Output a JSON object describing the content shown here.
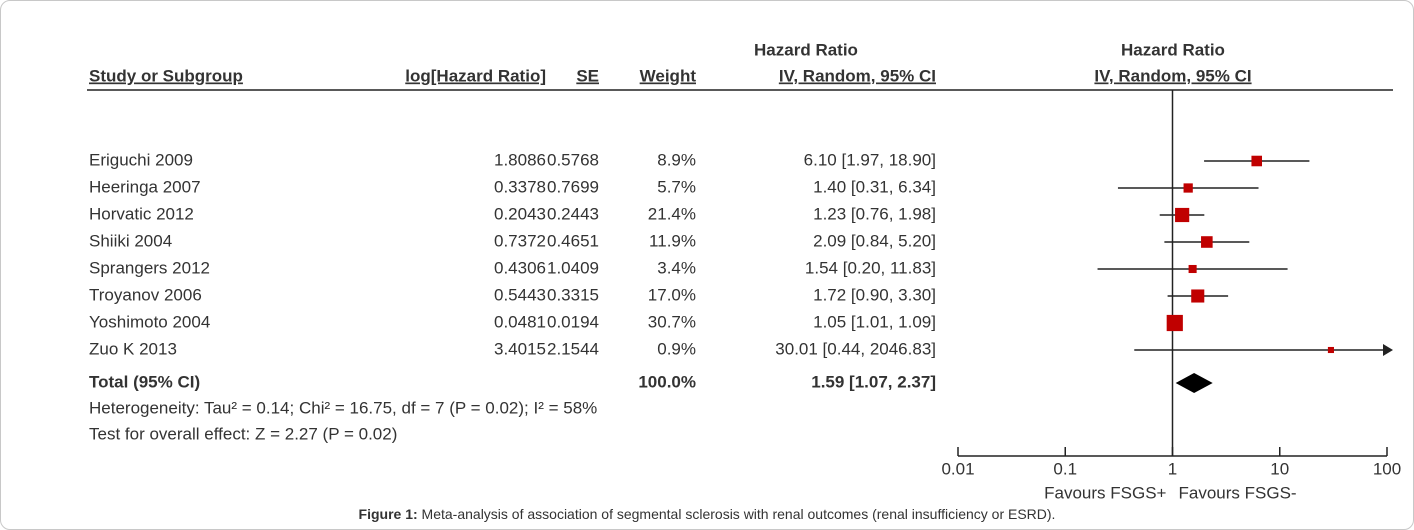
{
  "chart_data": {
    "type": "forest",
    "headers": {
      "study": "Study or Subgroup",
      "log_hr": "log[Hazard Ratio]",
      "se": "SE",
      "weight": "Weight",
      "hr_top": "Hazard Ratio",
      "hr_sub": "IV, Random, 95% CI",
      "plot_top": "Hazard Ratio",
      "plot_sub": "IV, Random, 95% CI"
    },
    "categories": [
      "Eriguchi 2009",
      "Heeringa 2007",
      "Horvatic 2012",
      "Shiiki 2004",
      "Sprangers 2012",
      "Troyanov 2006",
      "Yoshimoto 2004",
      "Zuo K 2013"
    ],
    "log_hr": [
      1.8086,
      0.3378,
      0.2043,
      0.7372,
      0.4306,
      0.5443,
      0.0481,
      3.4015
    ],
    "se": [
      0.5768,
      0.7699,
      0.2443,
      0.4651,
      1.0409,
      0.3315,
      0.0194,
      2.1544
    ],
    "weights": [
      8.9,
      5.7,
      21.4,
      11.9,
      3.4,
      17.0,
      30.7,
      0.9
    ],
    "weight_labels": [
      "8.9%",
      "5.7%",
      "21.4%",
      "11.9%",
      "3.4%",
      "17.0%",
      "30.7%",
      "0.9%"
    ],
    "values": [
      6.1,
      1.4,
      1.23,
      2.09,
      1.54,
      1.72,
      1.05,
      30.01
    ],
    "lower": [
      1.97,
      0.31,
      0.76,
      0.84,
      0.2,
      0.9,
      1.01,
      0.44
    ],
    "upper": [
      18.9,
      6.34,
      1.98,
      5.2,
      11.83,
      3.3,
      1.09,
      2046.83
    ],
    "value_labels": [
      "6.10 [1.97, 18.90]",
      "1.40 [0.31, 6.34]",
      "1.23 [0.76, 1.98]",
      "2.09 [0.84, 5.20]",
      "1.54 [0.20, 11.83]",
      "1.72 [0.90, 3.30]",
      "1.05 [1.01, 1.09]",
      "30.01 [0.44, 2046.83]"
    ],
    "color": "#c00000",
    "total": {
      "name": "Total (95% CI)",
      "weight": 100.0,
      "weight_label": "100.0%",
      "value": 1.59,
      "lower": 1.07,
      "upper": 2.37,
      "value_label": "1.59 [1.07, 2.37]"
    },
    "heterogeneity": "Heterogeneity: Tau² = 0.14; Chi² = 16.75, df = 7 (P = 0.02); I² = 58%",
    "overall_effect": "Test for overall effect: Z = 2.27 (P = 0.02)",
    "log_x": true,
    "xlim": [
      0.01,
      100
    ],
    "xticks": [
      0.01,
      0.1,
      1,
      10,
      100
    ],
    "xlabel_left": "Favours FSGS+",
    "xlabel_right": "Favours FSGS-",
    "caption_label": "Figure 1:",
    "caption": " Meta-analysis of association of segmental sclerosis with renal outcomes (renal insufficiency or ESRD)."
  }
}
